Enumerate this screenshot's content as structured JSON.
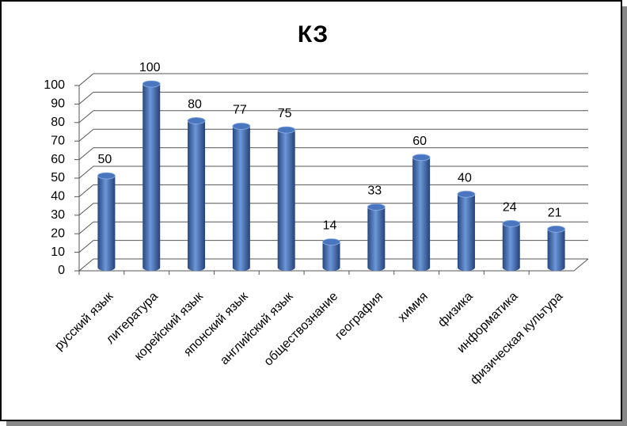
{
  "chart_data": {
    "type": "bar",
    "title": "КЗ",
    "categories": [
      "русский язык",
      "литература",
      "корейский язык",
      "японский язык",
      "английский язык",
      "обществознание",
      "география",
      "химия",
      "физика",
      "информатика",
      "физическая культура"
    ],
    "values": [
      50,
      100,
      80,
      77,
      75,
      14,
      33,
      60,
      40,
      24,
      21
    ],
    "color": "#4a76c0",
    "ylim": [
      0,
      100
    ],
    "yticks": [
      0,
      10,
      20,
      30,
      40,
      50,
      60,
      70,
      80,
      90,
      100
    ],
    "grid": true
  }
}
